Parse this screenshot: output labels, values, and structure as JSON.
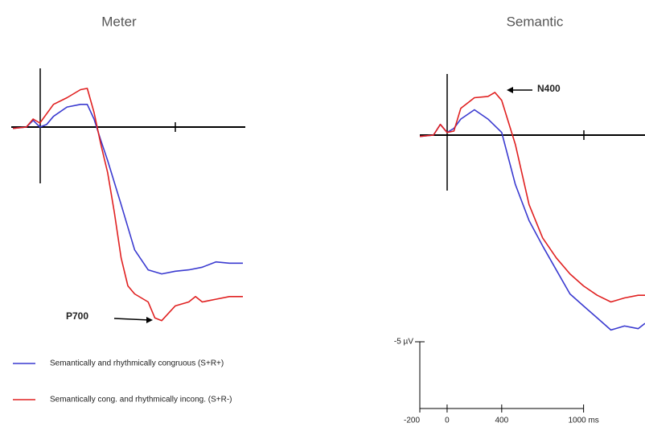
{
  "chart_data": [
    {
      "type": "line",
      "title": "Meter",
      "xlim": [
        -200,
        1500
      ],
      "ylim": [
        -5,
        15
      ],
      "y_inverted": true,
      "series": [
        {
          "name": "Semantically and rhythmically congruous (S+R+)",
          "color": "#3a3ad0",
          "x": [
            -200,
            -100,
            -50,
            0,
            50,
            100,
            200,
            300,
            350,
            400,
            450,
            500,
            600,
            700,
            800,
            900,
            1000,
            1100,
            1200,
            1300,
            1400,
            1500
          ],
          "values": [
            0.1,
            0,
            -0.5,
            0,
            -0.2,
            -0.8,
            -1.5,
            -1.7,
            -1.7,
            -0.6,
            1.0,
            2.5,
            5.8,
            9.2,
            10.7,
            11.0,
            10.8,
            10.7,
            10.5,
            10.1,
            10.2,
            10.2
          ]
        },
        {
          "name": "Semantically cong. and rhythmically incong. (S+R-)",
          "color": "#e02020",
          "x": [
            -200,
            -100,
            -50,
            0,
            100,
            200,
            300,
            350,
            400,
            450,
            500,
            550,
            600,
            650,
            700,
            800,
            850,
            900,
            1000,
            1100,
            1150,
            1200,
            1300,
            1400,
            1500
          ],
          "values": [
            0.1,
            0,
            -0.6,
            -0.3,
            -1.7,
            -2.2,
            -2.8,
            -2.9,
            -1.1,
            1.3,
            3.4,
            6.4,
            9.8,
            11.9,
            12.5,
            13.1,
            14.3,
            14.5,
            13.4,
            13.1,
            12.7,
            13.1,
            12.9,
            12.7,
            12.7
          ]
        }
      ],
      "annotation": "P700"
    },
    {
      "type": "line",
      "title": "Semantic",
      "xlim": [
        -200,
        1450
      ],
      "ylim": [
        -5,
        15
      ],
      "y_inverted": true,
      "series": [
        {
          "color": "#3a3ad0",
          "x": [
            -200,
            -100,
            -50,
            0,
            50,
            100,
            200,
            300,
            400,
            500,
            600,
            700,
            800,
            900,
            1000,
            1100,
            1200,
            1300,
            1400,
            1450
          ],
          "values": [
            0.1,
            0,
            -0.8,
            -0.2,
            -0.5,
            -1.2,
            -1.9,
            -1.2,
            -0.2,
            3.7,
            6.4,
            8.3,
            10.1,
            11.9,
            12.8,
            13.7,
            14.6,
            14.3,
            14.5,
            14.1
          ]
        },
        {
          "color": "#e02020",
          "x": [
            -200,
            -100,
            -50,
            0,
            50,
            100,
            200,
            300,
            350,
            400,
            500,
            600,
            700,
            800,
            900,
            1000,
            1100,
            1200,
            1300,
            1400,
            1450
          ],
          "values": [
            0.1,
            0,
            -0.8,
            -0.2,
            -0.3,
            -2.0,
            -2.8,
            -2.9,
            -3.2,
            -2.6,
            0.7,
            5.2,
            7.7,
            9.2,
            10.4,
            11.3,
            12.0,
            12.5,
            12.2,
            12.0,
            12.0
          ]
        }
      ],
      "annotation": "N400",
      "xticks": [
        -200,
        0,
        400,
        {
          "value": 1000,
          "label": "1000 ms"
        }
      ],
      "yticks": [
        {
          "value": -5,
          "label": "-5 µV"
        }
      ]
    }
  ]
}
